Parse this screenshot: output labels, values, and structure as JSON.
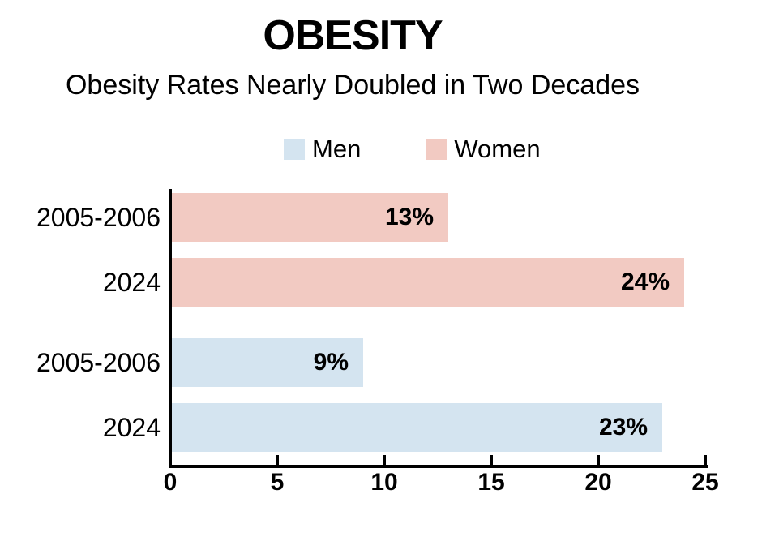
{
  "title": "OBESITY",
  "subtitle": "Obesity Rates Nearly Doubled in Two Decades",
  "legend": {
    "items": [
      {
        "label": "Men",
        "color": "#d4e4f0"
      },
      {
        "label": "Women",
        "color": "#f2cac2"
      }
    ]
  },
  "colors": {
    "men_bar": "#d4e4f0",
    "women_bar": "#f2cac2",
    "axis": "#000000",
    "text": "#000000",
    "background": "#ffffff"
  },
  "chart_data": {
    "type": "bar",
    "orientation": "horizontal",
    "title": "OBESITY",
    "subtitle": "Obesity Rates Nearly Doubled in Two Decades",
    "categories": [
      "2005-2006",
      "2024",
      "2005-2006",
      "2024"
    ],
    "bars": [
      {
        "category": "2005-2006",
        "series": "Women",
        "value": 13,
        "label": "13%",
        "color": "#f2cac2"
      },
      {
        "category": "2024",
        "series": "Women",
        "value": 24,
        "label": "24%",
        "color": "#f2cac2"
      },
      {
        "category": "2005-2006",
        "series": "Men",
        "value": 9,
        "label": "9%",
        "color": "#d4e4f0"
      },
      {
        "category": "2024",
        "series": "Men",
        "value": 23,
        "label": "23%",
        "color": "#d4e4f0"
      }
    ],
    "series": [
      {
        "name": "Men",
        "color": "#d4e4f0",
        "values": [
          9,
          23
        ]
      },
      {
        "name": "Women",
        "color": "#f2cac2",
        "values": [
          13,
          24
        ]
      }
    ],
    "xlabel": "",
    "ylabel": "",
    "x_ticks": [
      0,
      5,
      10,
      15,
      20,
      25
    ],
    "xlim": [
      0,
      25
    ],
    "grid": false,
    "legend_position": "top-center",
    "value_labels": "inside-end"
  }
}
